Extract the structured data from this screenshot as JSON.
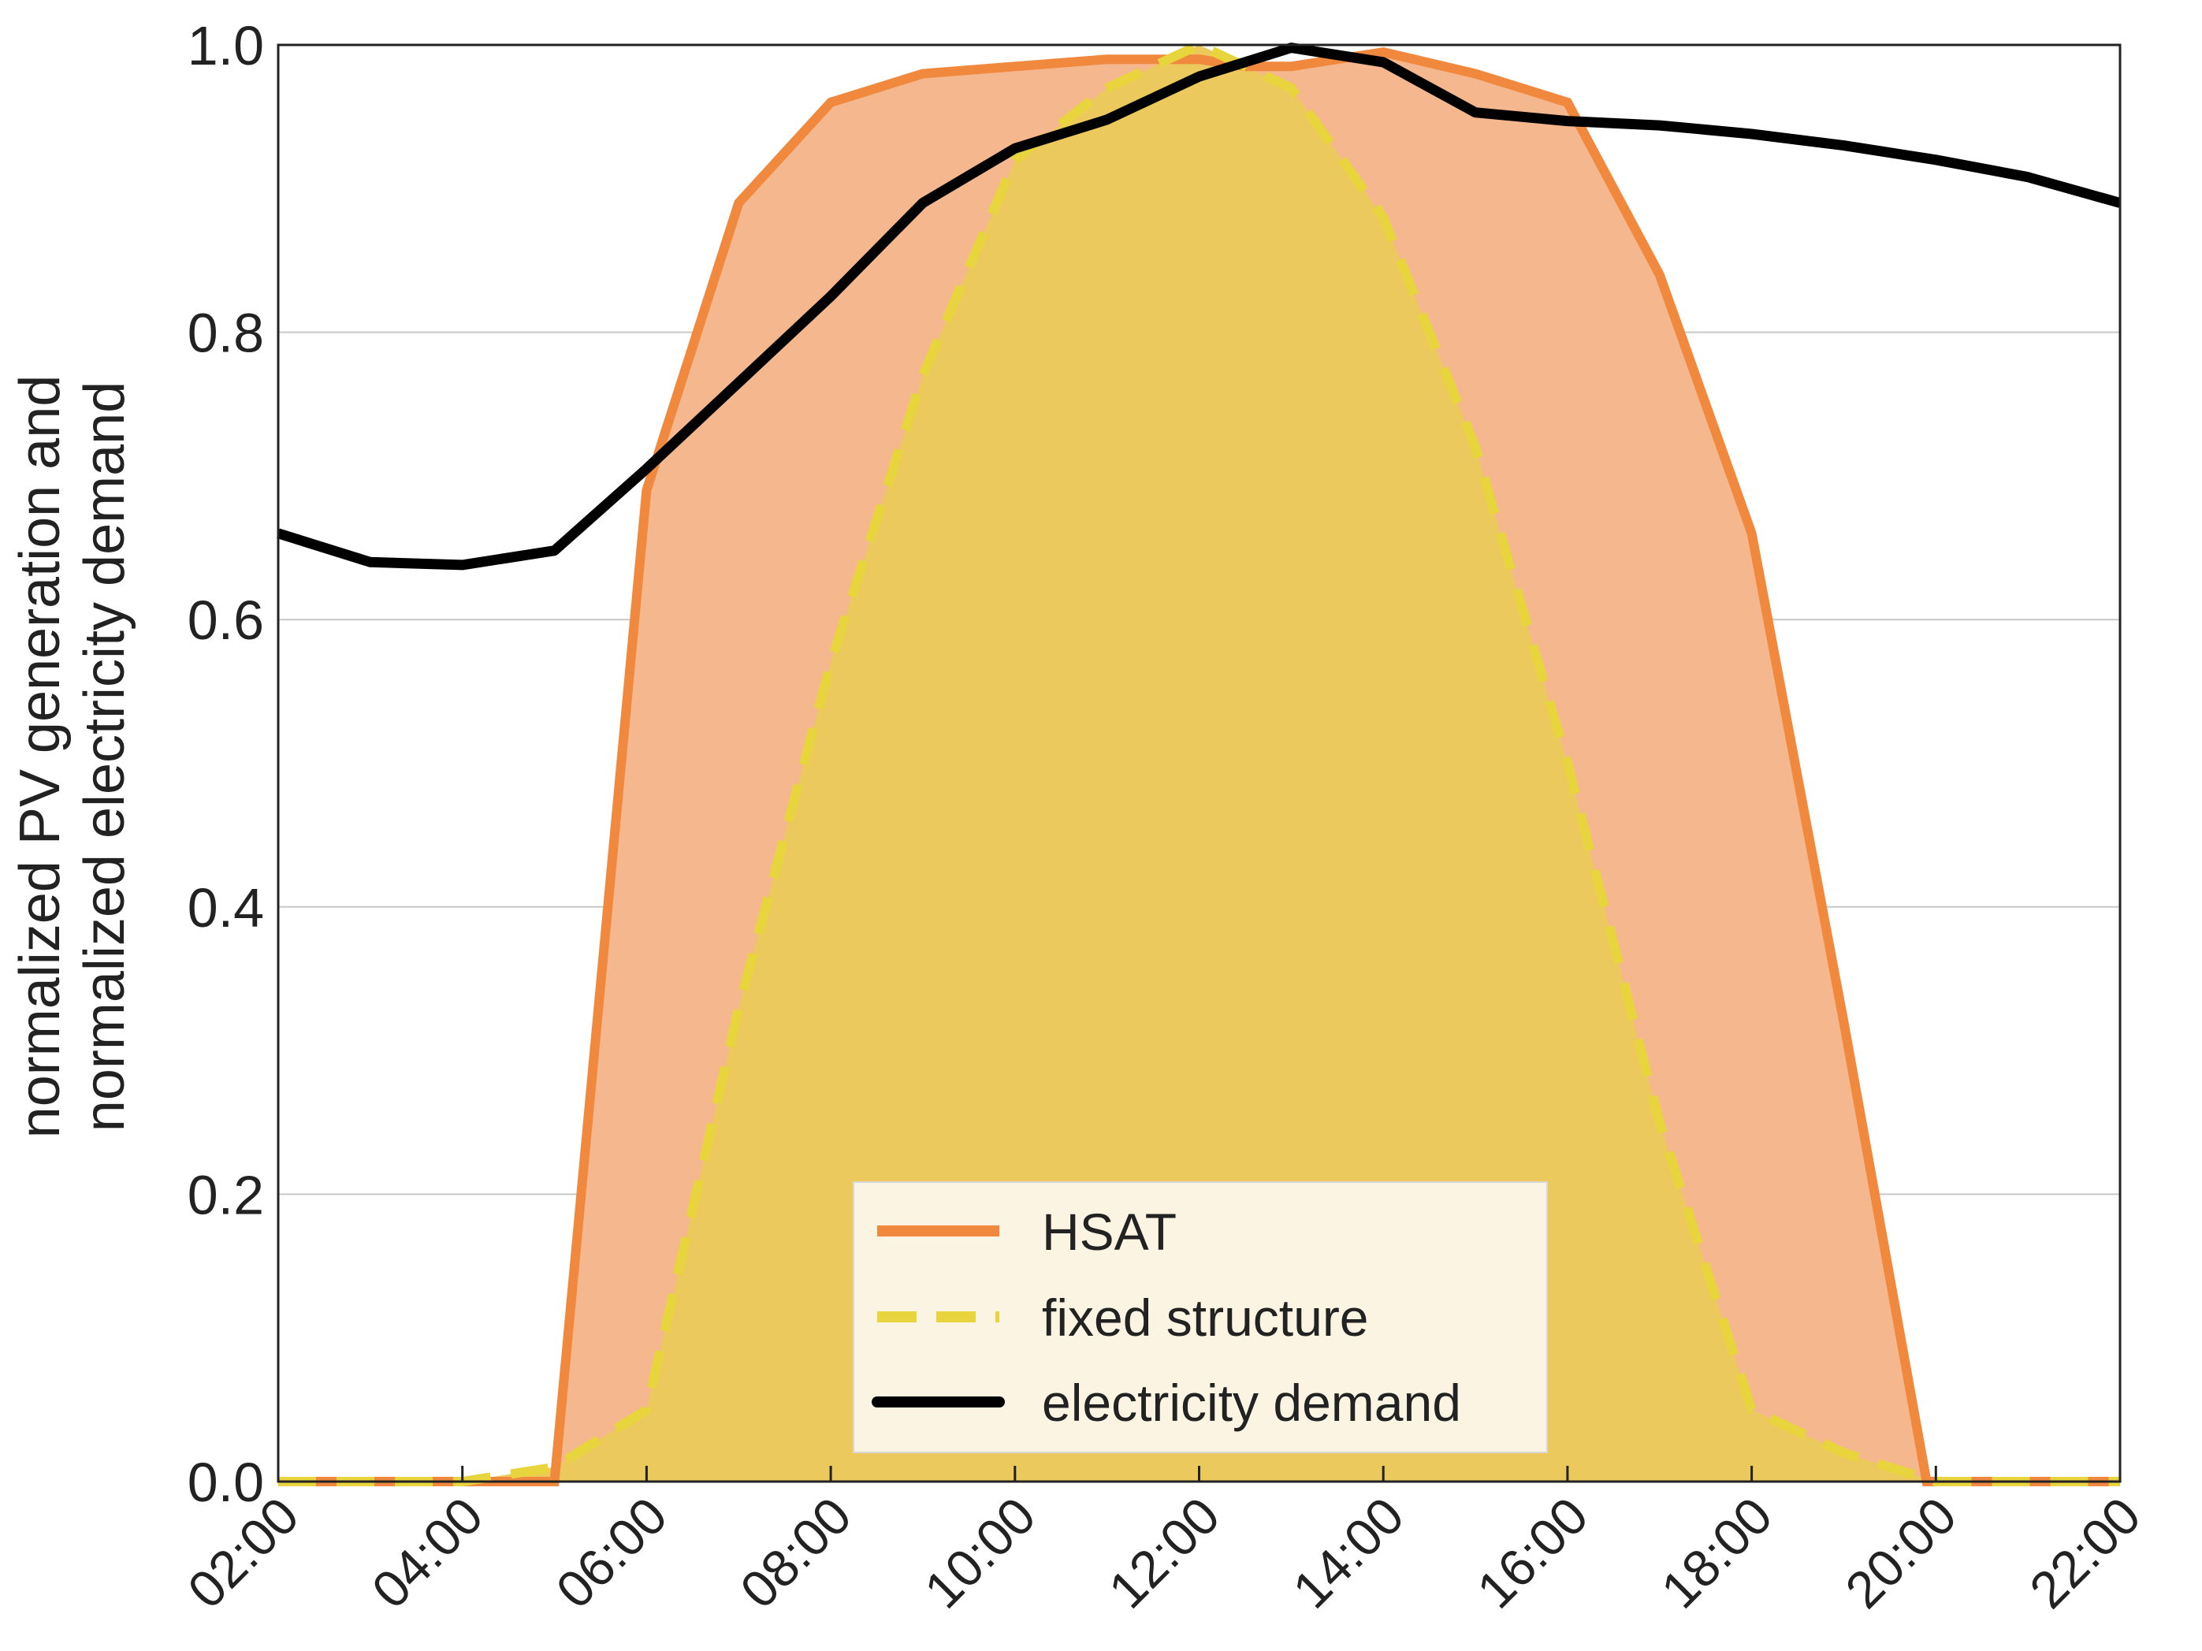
{
  "chart_data": {
    "type": "line",
    "title": "",
    "xlabel": "",
    "ylabel_lines": [
      "normalized PV generation and",
      "normalized electricity demand"
    ],
    "x_tick_labels": [
      "02:00",
      "04:00",
      "06:00",
      "08:00",
      "10:00",
      "12:00",
      "14:00",
      "16:00",
      "18:00",
      "20:00",
      "22:00"
    ],
    "y_tick_labels": [
      "0.0",
      "0.2",
      "0.4",
      "0.6",
      "0.8",
      "1.0"
    ],
    "xlim_hours": [
      2,
      22
    ],
    "ylim": [
      0,
      1
    ],
    "y_ticks": [
      0,
      0.2,
      0.4,
      0.6,
      0.8,
      1.0
    ],
    "grid": "horizontal",
    "legend_position": "lower-center",
    "colors": {
      "hsat_line": "#F0883E",
      "hsat_fill": "#F5B78E",
      "fixed_line": "#E8D43C",
      "fixed_fill": "#ECC95C",
      "demand_line": "#000000",
      "grid": "#c8c8c8",
      "legend_bg": "#FBF4E2"
    },
    "series": [
      {
        "name": "HSAT",
        "style": "solid",
        "filled": true,
        "x": [
          2,
          3,
          4,
          5,
          6,
          7,
          8,
          9,
          10,
          11,
          12,
          12.5,
          13,
          14,
          15,
          16,
          17,
          18,
          19,
          19.9,
          21,
          22
        ],
        "values": [
          0,
          0,
          0,
          0,
          0.69,
          0.89,
          0.96,
          0.98,
          0.985,
          0.99,
          0.99,
          0.985,
          0.985,
          0.995,
          0.98,
          0.96,
          0.84,
          0.66,
          0.32,
          0,
          0,
          0
        ]
      },
      {
        "name": "fixed structure",
        "style": "dashed",
        "filled": true,
        "x": [
          2,
          3,
          4,
          5,
          6,
          7,
          8,
          9,
          10,
          11,
          12,
          13,
          14,
          15,
          16,
          17,
          18,
          19,
          19.5,
          20,
          21,
          22
        ],
        "values": [
          0,
          0,
          0,
          0.01,
          0.05,
          0.33,
          0.57,
          0.77,
          0.92,
          0.97,
          1.0,
          0.97,
          0.88,
          0.72,
          0.5,
          0.25,
          0.05,
          0.02,
          0.01,
          0,
          0,
          0
        ]
      },
      {
        "name": "electricity demand",
        "style": "solid",
        "filled": false,
        "x": [
          2,
          3,
          4,
          5,
          6,
          7,
          8,
          9,
          10,
          11,
          12,
          13,
          14,
          15,
          16,
          17,
          18,
          19,
          20,
          21,
          22
        ],
        "values": [
          0.66,
          0.64,
          0.638,
          0.648,
          0.705,
          0.765,
          0.825,
          0.89,
          0.928,
          0.948,
          0.978,
          0.998,
          0.988,
          0.953,
          0.947,
          0.944,
          0.938,
          0.93,
          0.92,
          0.908,
          0.89
        ]
      }
    ]
  }
}
